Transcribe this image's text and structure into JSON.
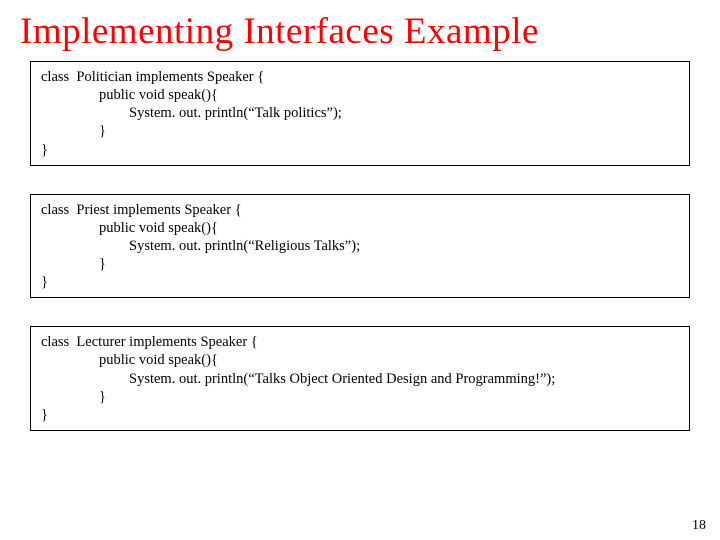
{
  "title": "Implementing Interfaces Example",
  "boxes": [
    {
      "lines": [
        {
          "text": "class  Politician implements Speaker {",
          "indent": 0
        },
        {
          "text": "public void speak(){",
          "indent": 1
        },
        {
          "text": "System. out. println(“Talk politics”);",
          "indent": 2
        },
        {
          "text": "}",
          "indent": 1
        },
        {
          "text": "}",
          "indent": 0
        }
      ]
    },
    {
      "lines": [
        {
          "text": "class  Priest implements Speaker {",
          "indent": 0
        },
        {
          "text": "public void speak(){",
          "indent": 1
        },
        {
          "text": "System. out. println(“Religious Talks”);",
          "indent": 2
        },
        {
          "text": "}",
          "indent": 1
        },
        {
          "text": "}",
          "indent": 0
        }
      ]
    },
    {
      "lines": [
        {
          "text": "class  Lecturer implements Speaker {",
          "indent": 0
        },
        {
          "text": "public void speak(){",
          "indent": 1
        },
        {
          "text": "System. out. println(“Talks Object Oriented Design and Programming!”);",
          "indent": 2
        },
        {
          "text": "}",
          "indent": 1
        },
        {
          "text": "}",
          "indent": 0
        }
      ]
    }
  ],
  "page_number": "18",
  "colors": {
    "title": "#ff0000",
    "border": "#000000",
    "background": "#ffffff",
    "text": "#000000"
  }
}
